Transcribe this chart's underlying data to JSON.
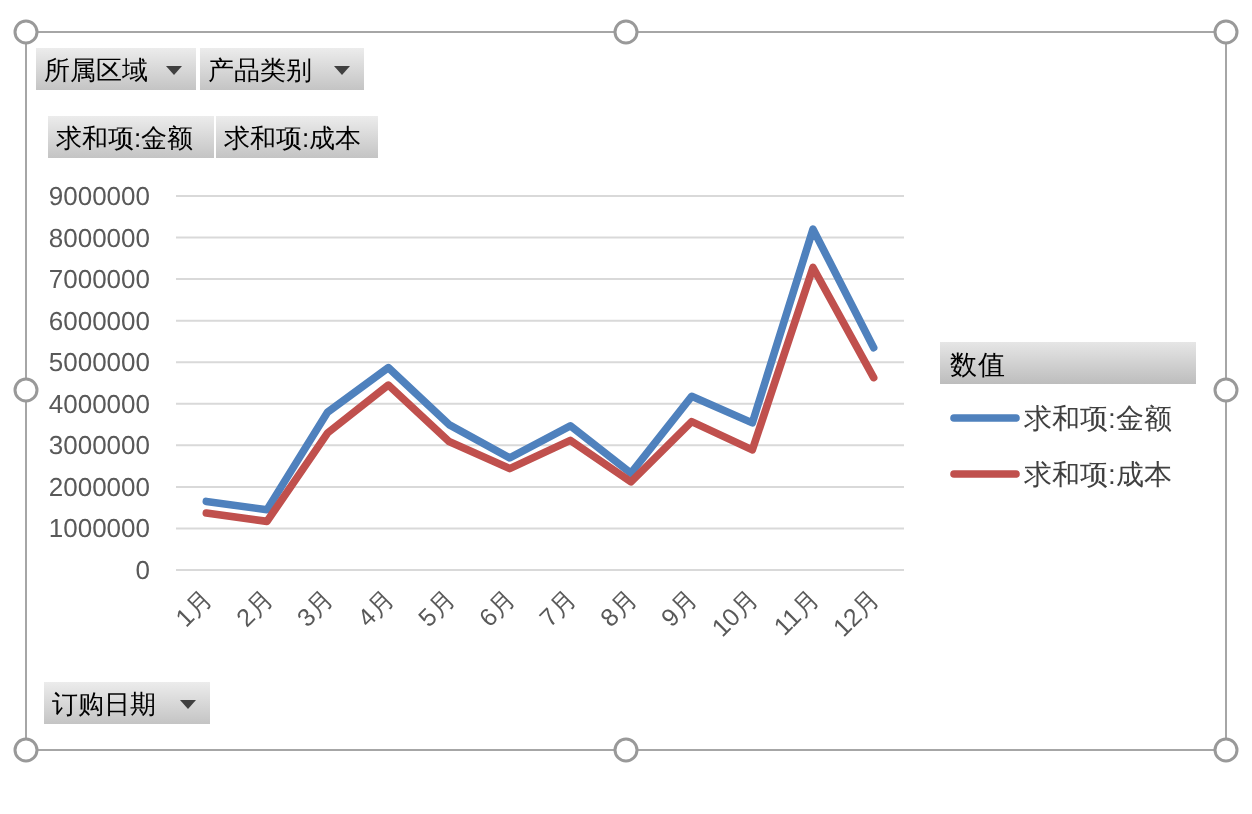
{
  "chart_data": {
    "type": "line",
    "categories": [
      "1月",
      "2月",
      "3月",
      "4月",
      "5月",
      "6月",
      "7月",
      "8月",
      "9月",
      "10月",
      "11月",
      "12月"
    ],
    "series": [
      {
        "name": "求和项:金额",
        "color": "#4f81bd",
        "values": [
          1650000,
          1450000,
          3800000,
          4870000,
          3500000,
          2700000,
          3470000,
          2330000,
          4180000,
          3540000,
          8200000,
          5350000
        ]
      },
      {
        "name": "求和项:成本",
        "color": "#c0504d",
        "values": [
          1370000,
          1170000,
          3300000,
          4450000,
          3090000,
          2440000,
          3120000,
          2120000,
          3570000,
          2890000,
          7280000,
          4630000
        ]
      }
    ],
    "ylim": [
      0,
      9000000
    ],
    "yticks": [
      0,
      1000000,
      2000000,
      3000000,
      4000000,
      5000000,
      6000000,
      7000000,
      8000000,
      9000000
    ],
    "grid": "y",
    "legend": "right",
    "legend_title": "数值",
    "marker": "none",
    "line_style": "solid",
    "annotations": [
      "所属区域",
      "产品类别",
      "求和项:金额",
      "求和项:成本",
      "订购日期"
    ]
  }
}
